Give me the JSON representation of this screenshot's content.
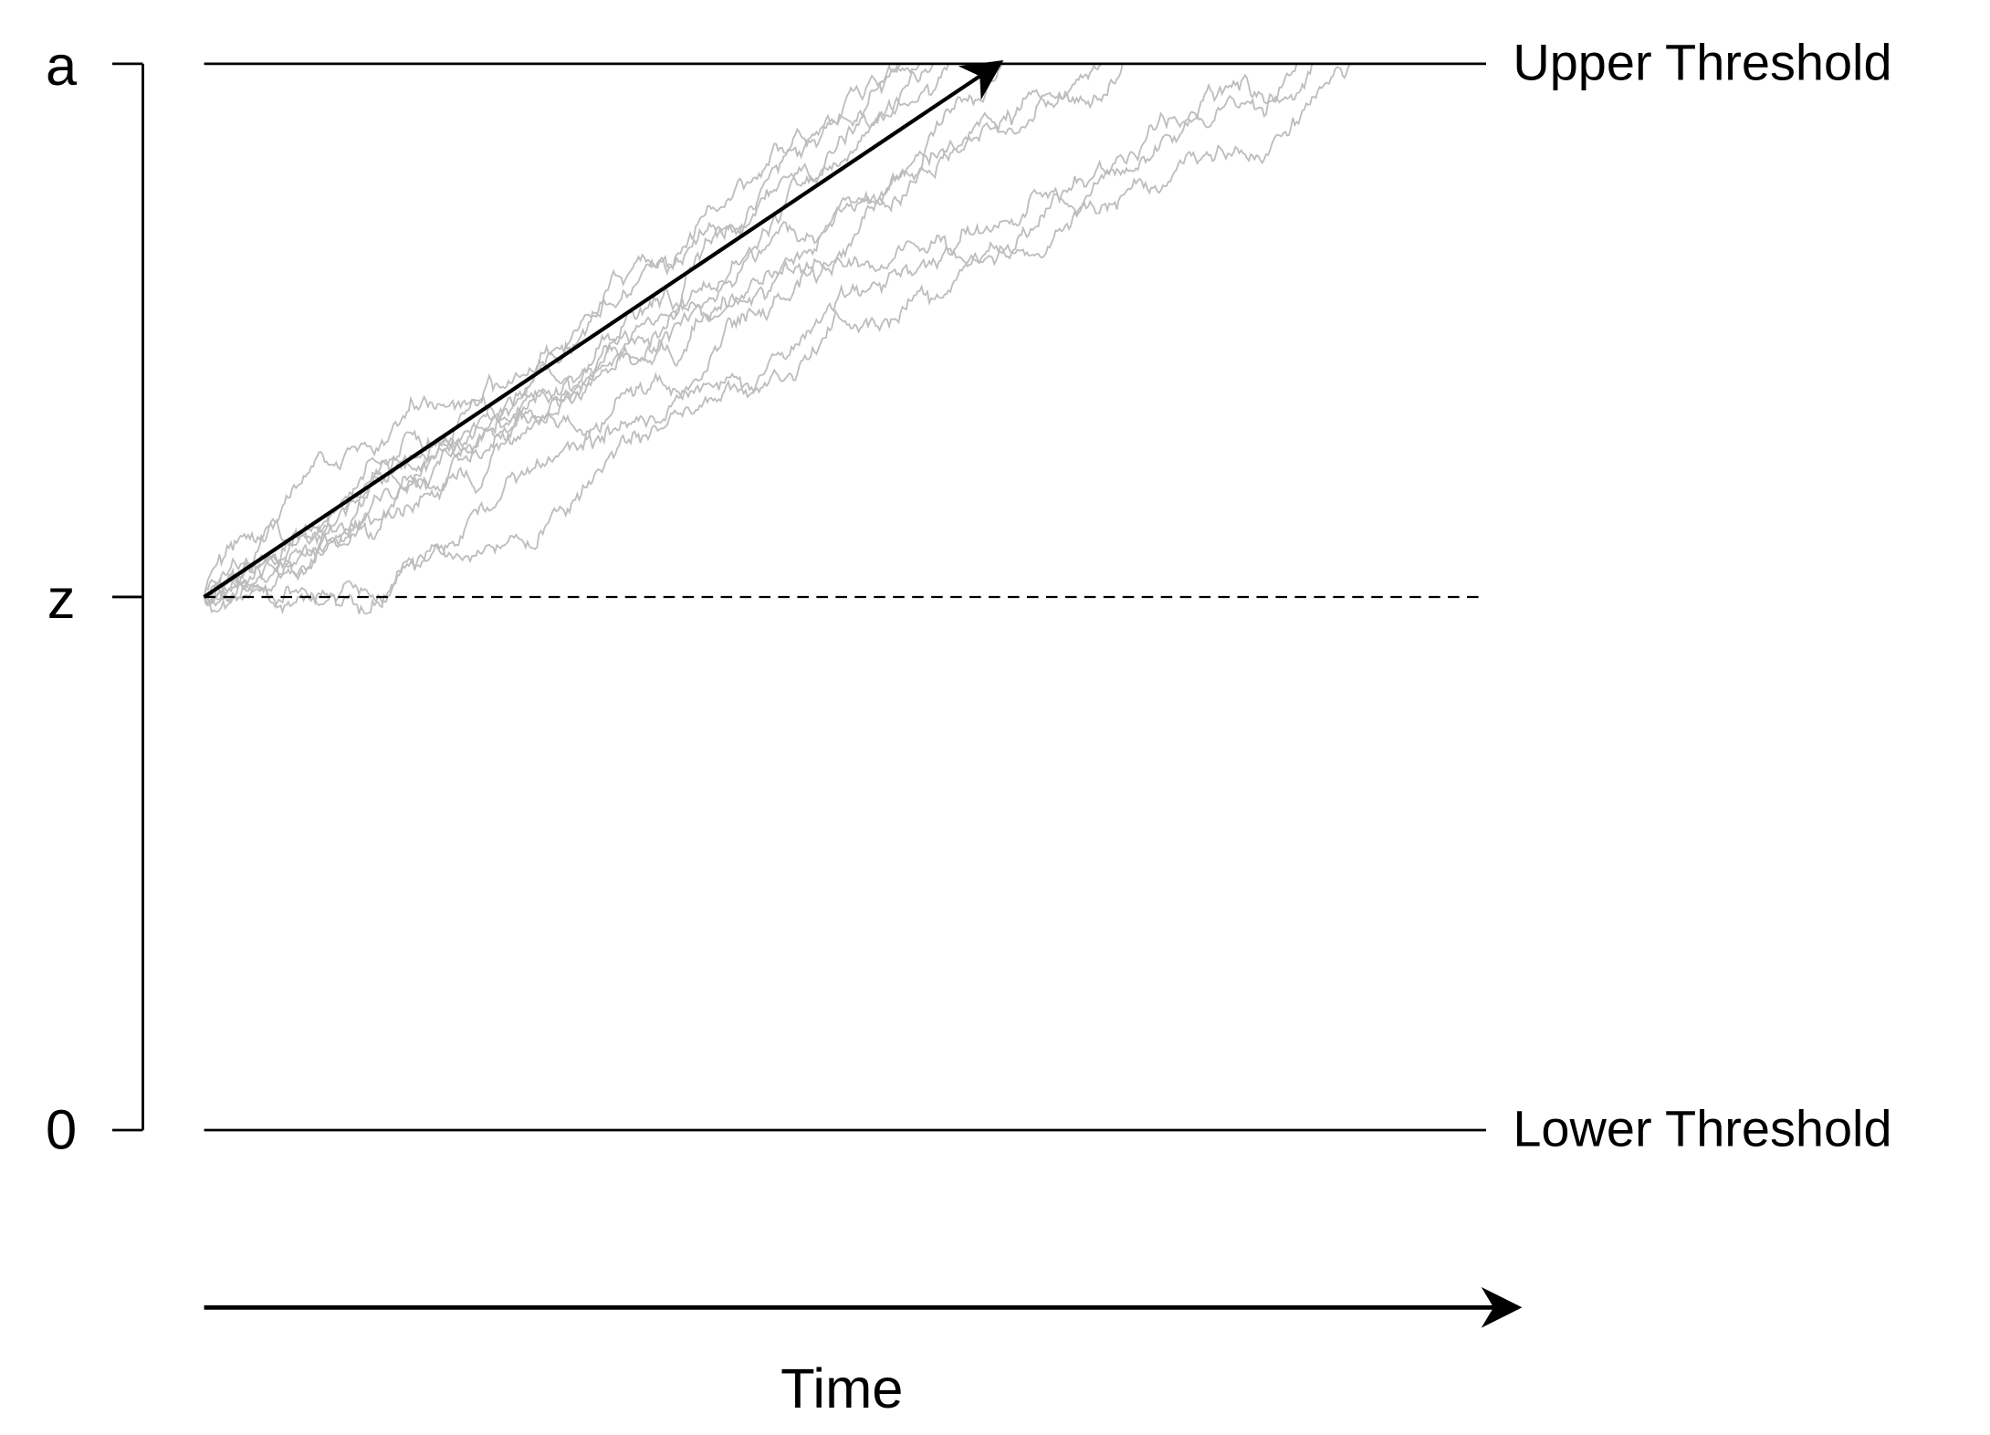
{
  "axis": {
    "ticks": [
      "a",
      "z",
      "0"
    ]
  },
  "thresholds": {
    "upper": "Upper Threshold",
    "lower": "Lower Threshold"
  },
  "x_label": "Time"
}
